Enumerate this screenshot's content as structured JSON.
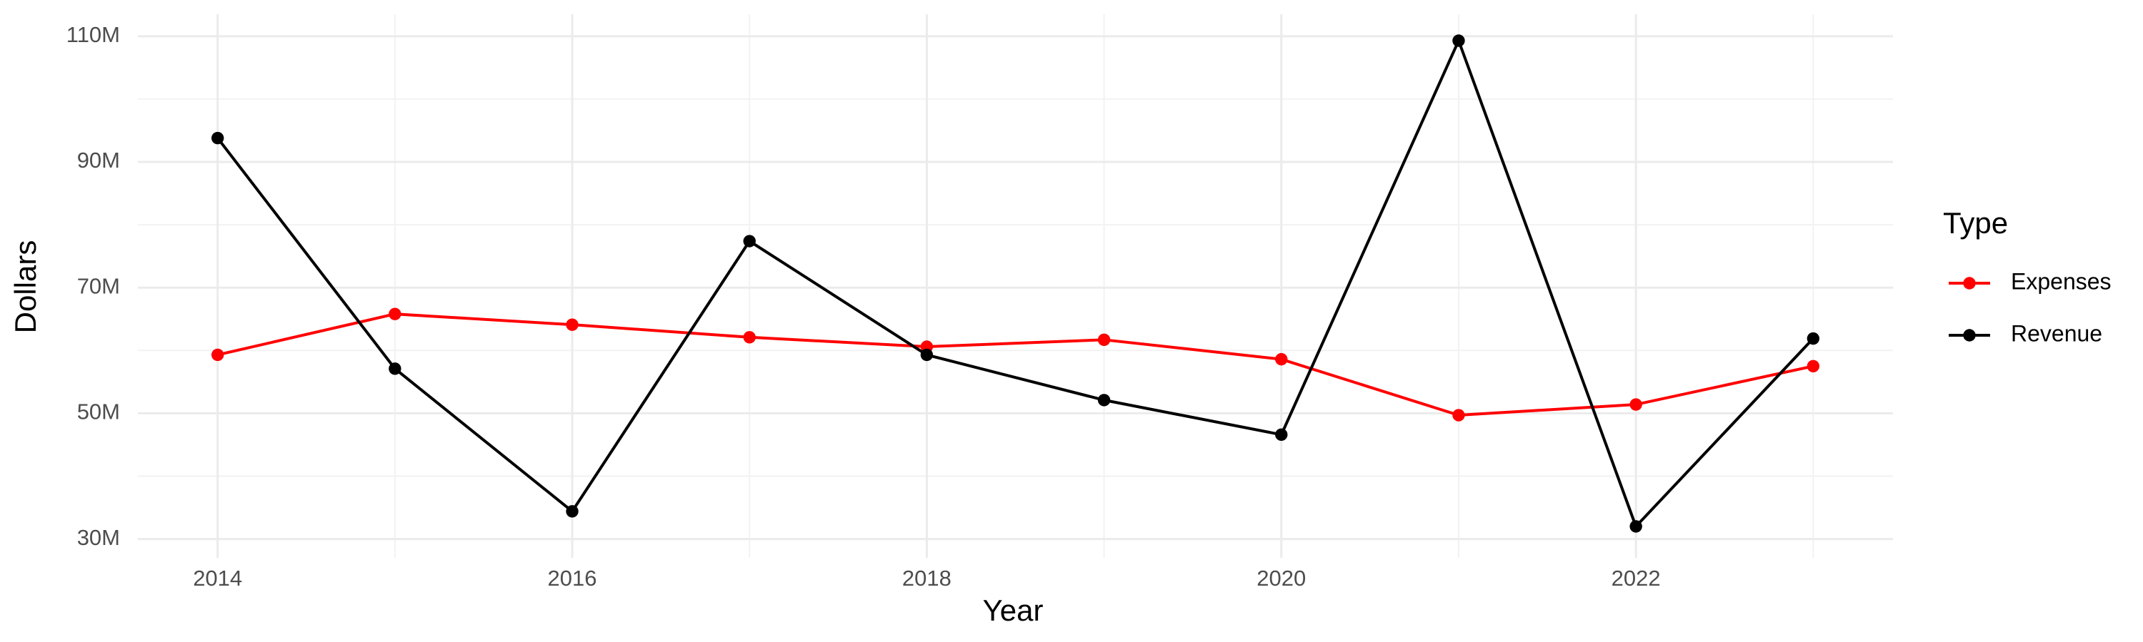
{
  "chart_data": {
    "type": "line",
    "x_label": "Year",
    "y_label": "Dollars",
    "legend_title": "Type",
    "legend": "right",
    "grid": true,
    "x": [
      2014,
      2015,
      2016,
      2017,
      2018,
      2019,
      2020,
      2021,
      2022,
      2023
    ],
    "series": [
      {
        "name": "Expenses",
        "color": "#ff0000",
        "values": [
          59300000,
          65800000,
          64100000,
          62100000,
          60600000,
          61700000,
          58600000,
          49700000,
          51400000,
          57500000
        ]
      },
      {
        "name": "Revenue",
        "color": "#000000",
        "values": [
          93800000,
          57100000,
          34400000,
          77400000,
          59300000,
          52100000,
          46600000,
          109300000,
          32000000,
          61900000
        ]
      }
    ],
    "xlim": [
      2013.55,
      2023.45
    ],
    "xticks": [
      2014,
      2016,
      2018,
      2020,
      2022
    ],
    "ylim": [
      27000000,
      113500000
    ],
    "yticks": [
      {
        "value": 30000000,
        "label": "30M"
      },
      {
        "value": 50000000,
        "label": "50M"
      },
      {
        "value": 70000000,
        "label": "70M"
      },
      {
        "value": 90000000,
        "label": "90M"
      },
      {
        "value": 110000000,
        "label": "110M"
      }
    ]
  }
}
